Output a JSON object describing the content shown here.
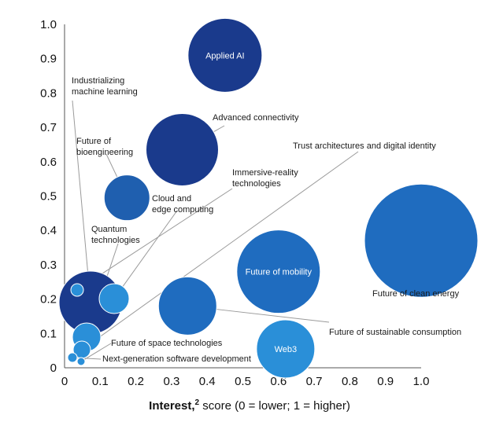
{
  "chart_data": {
    "type": "scatter",
    "title": "",
    "xlabel_bold": "Interest,",
    "xlabel_sup": "2",
    "xlabel_rest": " score (0 = lower; 1 = higher)",
    "ylabel": "",
    "xlim": [
      0,
      1.0
    ],
    "ylim": [
      0,
      1.0
    ],
    "x_ticks": [
      "0",
      "0.1",
      "0.2",
      "0.3",
      "0.4",
      "0.5",
      "0.6",
      "0.7",
      "0.8",
      "0.9",
      "1.0"
    ],
    "y_ticks": [
      "0",
      "0.1",
      "0.2",
      "0.3",
      "0.4",
      "0.5",
      "0.6",
      "0.7",
      "0.8",
      "0.9",
      "1.0"
    ],
    "points": [
      {
        "name": "Applied AI",
        "x": 0.45,
        "y": 0.91,
        "label_inside": true,
        "color": "#1a3a8c"
      },
      {
        "name": "Advanced connectivity",
        "x": 0.33,
        "y": 0.635,
        "label_inside": false,
        "color": "#1a3a8c"
      },
      {
        "name": "Industrializing machine learning",
        "x": 0.07,
        "y": 0.185,
        "label_inside": false,
        "color": "#1a3a8c"
      },
      {
        "name": "Future of bioengineering",
        "x": 0.175,
        "y": 0.495,
        "label_inside": false,
        "color": "#1f5faf"
      },
      {
        "name": "Cloud and edge computing",
        "x": 0.14,
        "y": 0.205,
        "label_inside": false,
        "color": "#2a8fd8"
      },
      {
        "name": "Immersive-reality technologies",
        "x": 0.035,
        "y": 0.225,
        "label_inside": false,
        "color": "#2a8fd8"
      },
      {
        "name": "Quantum technologies",
        "x": 0.065,
        "y": 0.085,
        "label_inside": false,
        "color": "#2a8fd8"
      },
      {
        "name": "Trust architectures and digital identity",
        "x": 0.04,
        "y": 0.05,
        "label_inside": false,
        "color": "#2a8fd8"
      },
      {
        "name": "Future of mobility",
        "x": 0.6,
        "y": 0.28,
        "label_inside": true,
        "color": "#1f6cbf"
      },
      {
        "name": "Future of clean energy",
        "x": 1.0,
        "y": 0.37,
        "label_inside": false,
        "color": "#1f6cbf"
      },
      {
        "name": "Future of sustainable consumption",
        "x": 0.345,
        "y": 0.18,
        "label_inside": false,
        "color": "#1f6cbf"
      },
      {
        "name": "Web3",
        "x": 0.62,
        "y": 0.055,
        "label_inside": true,
        "color": "#2a8fd8"
      },
      {
        "name": "Future of space technologies",
        "x": 0.06,
        "y": 0.08,
        "label_inside": false,
        "color": "#2a8fd8"
      },
      {
        "name": "Next-generation software development",
        "x": 0.02,
        "y": 0.025,
        "label_inside": false,
        "color": "#2a8fd8"
      }
    ],
    "annotations": [
      {
        "text": "Industrializing",
        "line2": "machine learning",
        "target": "Industrializing machine learning"
      },
      {
        "text": "Future of",
        "line2": "bioengineering",
        "target": "Future of bioengineering"
      },
      {
        "text": "Advanced connectivity",
        "line2": "",
        "target": "Advanced connectivity"
      },
      {
        "text": "Trust architectures and digital identity",
        "line2": "",
        "target": "Trust architectures and digital identity"
      },
      {
        "text": "Immersive-reality",
        "line2": "technologies",
        "target": "Immersive-reality technologies"
      },
      {
        "text": "Cloud and",
        "line2": "edge computing",
        "target": "Cloud and edge computing"
      },
      {
        "text": "Quantum",
        "line2": "technologies",
        "target": "Quantum technologies"
      },
      {
        "text": "Future of clean energy",
        "line2": "",
        "target": "Future of clean energy"
      },
      {
        "text": "Future of sustainable consumption",
        "line2": "",
        "target": "Future of sustainable consumption"
      },
      {
        "text": "Future of space technologies",
        "line2": "",
        "target": "Future of space technologies"
      },
      {
        "text": "Next-generation software development",
        "line2": "",
        "target": "Next-generation software development"
      }
    ]
  }
}
